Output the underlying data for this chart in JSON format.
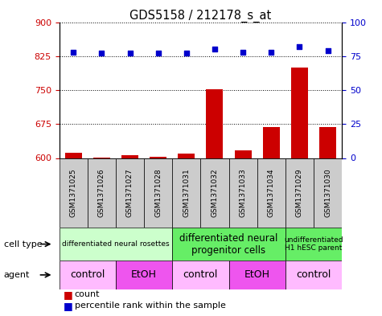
{
  "title": "GDS5158 / 212178_s_at",
  "samples": [
    "GSM1371025",
    "GSM1371026",
    "GSM1371027",
    "GSM1371028",
    "GSM1371031",
    "GSM1371032",
    "GSM1371033",
    "GSM1371034",
    "GSM1371029",
    "GSM1371030"
  ],
  "counts": [
    612,
    601,
    607,
    603,
    610,
    752,
    617,
    669,
    800,
    669
  ],
  "percentile_ranks": [
    78,
    77,
    77,
    77,
    77,
    80,
    78,
    78,
    82,
    79
  ],
  "ylim_left": [
    600,
    900
  ],
  "ylim_right": [
    0,
    100
  ],
  "yticks_left": [
    600,
    675,
    750,
    825,
    900
  ],
  "yticks_right": [
    0,
    25,
    50,
    75,
    100
  ],
  "cell_type_groups": [
    {
      "label": "differentiated neural rosettes",
      "start": 0,
      "end": 4,
      "color": "#ccffcc",
      "fontsize": 6.5
    },
    {
      "label": "differentiated neural\nprogenitor cells",
      "start": 4,
      "end": 8,
      "color": "#66ee66",
      "fontsize": 8.5
    },
    {
      "label": "undifferentiated\nH1 hESC parent",
      "start": 8,
      "end": 10,
      "color": "#66ee66",
      "fontsize": 6.5
    }
  ],
  "agent_groups": [
    {
      "label": "control",
      "start": 0,
      "end": 2,
      "color": "#ffbbff"
    },
    {
      "label": "EtOH",
      "start": 2,
      "end": 4,
      "color": "#ee55ee"
    },
    {
      "label": "control",
      "start": 4,
      "end": 6,
      "color": "#ffbbff"
    },
    {
      "label": "EtOH",
      "start": 6,
      "end": 8,
      "color": "#ee55ee"
    },
    {
      "label": "control",
      "start": 8,
      "end": 10,
      "color": "#ffbbff"
    }
  ],
  "bar_color": "#cc0000",
  "dot_color": "#0000cc",
  "background_color": "#ffffff",
  "left_axis_color": "#cc0000",
  "right_axis_color": "#0000cc",
  "sample_box_color": "#cccccc",
  "label_fontsize": 8,
  "sample_fontsize": 6.5
}
